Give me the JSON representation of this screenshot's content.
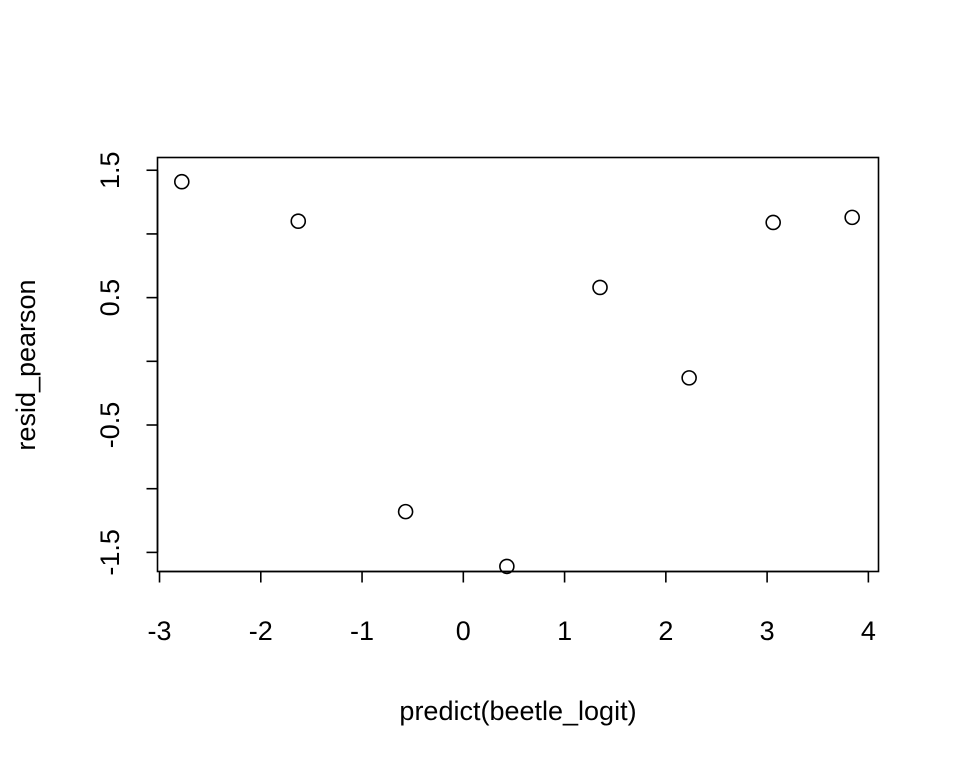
{
  "chart_data": {
    "type": "scatter",
    "title": "",
    "xlabel": "predict(beetle_logit)",
    "ylabel": "resid_pearson",
    "xlim": [
      -3.02,
      4.1
    ],
    "ylim": [
      -1.65,
      1.6
    ],
    "x_ticks": [
      -3,
      -2,
      -1,
      0,
      1,
      2,
      3,
      4
    ],
    "x_tick_labels": [
      "-3",
      "-2",
      "-1",
      "0",
      "1",
      "2",
      "3",
      "4"
    ],
    "y_ticks": [
      -1.5,
      -1.0,
      -0.5,
      0.0,
      0.5,
      1.0,
      1.5
    ],
    "y_tick_labels": [
      "-1.5",
      "",
      "-0.5",
      "",
      "0.5",
      "",
      "1.5"
    ],
    "grid": false,
    "legend": "none",
    "marker": "open-circle",
    "colors": {
      "points": "#000000",
      "axes": "#000000",
      "background": "#ffffff"
    },
    "points": [
      {
        "x": -2.78,
        "y": 1.41
      },
      {
        "x": -1.63,
        "y": 1.1
      },
      {
        "x": -0.57,
        "y": -1.18
      },
      {
        "x": 0.43,
        "y": -1.61
      },
      {
        "x": 1.35,
        "y": 0.58
      },
      {
        "x": 2.23,
        "y": -0.13
      },
      {
        "x": 3.06,
        "y": 1.09
      },
      {
        "x": 3.84,
        "y": 1.13
      }
    ]
  }
}
